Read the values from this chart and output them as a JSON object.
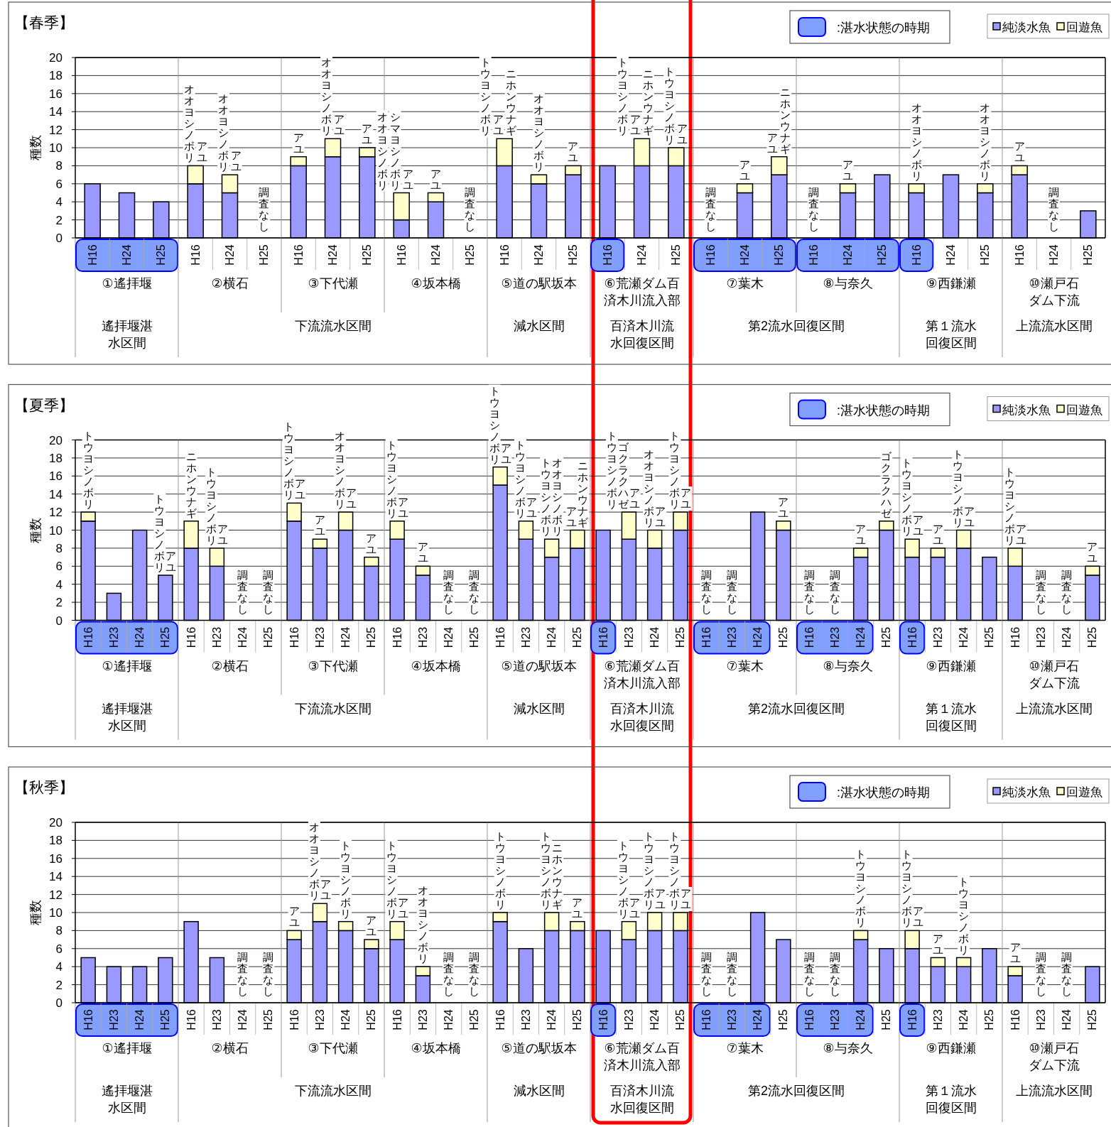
{
  "chart_data": [
    {
      "type": "bar",
      "title": "【春季】",
      "ylabel": "種数",
      "xlabel": "①遙拝堰",
      "stacked": true,
      "grid": "y",
      "ylim": [
        0,
        20
      ],
      "yticks": [
        0,
        2,
        4,
        6,
        8,
        10,
        12,
        14,
        16,
        18,
        20
      ],
      "categories": [
        "H16",
        "H24",
        "H25"
      ],
      "series": [
        {
          "color": "#9999ff",
          "values": [
            6,
            5,
            4
          ]
        }
      ],
      "annotations": [
        "遙拝堰湛水区間",
        ":湛水状態の時期"
      ]
    },
    {
      "type": "bar",
      "xlabel": "②横石",
      "stacked": true,
      "grid": "y",
      "tick_labels": "x",
      "ylim": [
        0,
        20
      ],
      "yticks": [
        0,
        2,
        4,
        6,
        8,
        10,
        12,
        14,
        16,
        18,
        20
      ],
      "categories": [
        "H16",
        "H24",
        "H25"
      ],
      "series": [
        {
          "color": "#9999ff",
          "values": [
            6,
            5,
            null
          ],
          "value_labels": [
            null,
            null,
            "調査なし"
          ]
        },
        {
          "color": "#ffffcc",
          "values": [
            2,
            2,
            null
          ]
        }
      ],
      "annotations": [
        {
          "text": "オオヨシノボリ",
          "x": "H16",
          "y": 8
        },
        {
          "text": "アユ",
          "x": "H16",
          "y": 8
        },
        {
          "text": "オオヨシノボリ",
          "x": "H24",
          "y": 7
        },
        {
          "text": "アユ",
          "x": "H24",
          "y": 7
        },
        "下流流水区間"
      ]
    },
    {
      "type": "bar",
      "xlabel": "③下代瀬",
      "stacked": true,
      "grid": "y",
      "tick_labels": "x",
      "ylim": [
        0,
        20
      ],
      "yticks": [
        0,
        2,
        4,
        6,
        8,
        10,
        12,
        14,
        16,
        18,
        20
      ],
      "categories": [
        "H16",
        "H24",
        "H25"
      ],
      "series": [
        {
          "color": "#9999ff",
          "values": [
            8,
            9,
            9
          ]
        },
        {
          "color": "#ffffcc",
          "values": [
            1,
            2,
            1
          ]
        }
      ],
      "annotations": [
        {
          "text": "アユ",
          "x": "H16",
          "y": 9
        },
        {
          "text": "オオヨシノボリ",
          "x": "H24",
          "y": 11
        },
        {
          "text": "アユ",
          "x": "H24",
          "y": 11
        },
        {
          "text": "アユ",
          "x": "H25",
          "y": 10
        }
      ]
    },
    {
      "type": "bar",
      "xlabel": "④坂本橋",
      "stacked": true,
      "grid": "y",
      "tick_labels": "x",
      "ylim": [
        0,
        20
      ],
      "yticks": [
        0,
        2,
        4,
        6,
        8,
        10,
        12,
        14,
        16,
        18,
        20
      ],
      "categories": [
        "H16",
        "H24",
        "H25"
      ],
      "series": [
        {
          "color": "#9999ff",
          "values": [
            2,
            4,
            null
          ],
          "value_labels": [
            null,
            null,
            "調査なし"
          ]
        },
        {
          "color": "#ffffcc",
          "values": [
            3,
            1,
            null
          ]
        }
      ],
      "annotations": [
        {
          "text": "オオヨシノボリ",
          "x": "H16",
          "y": 5
        },
        {
          "text": "シマヨシノボリ",
          "x": "H16",
          "y": 5
        },
        {
          "text": "アユ",
          "x": "H16",
          "y": 5
        },
        {
          "text": "アユ",
          "x": "H24",
          "y": 5
        }
      ]
    },
    {
      "type": "bar",
      "xlabel": "⑤道の駅坂本",
      "stacked": true,
      "grid": "y",
      "tick_labels": "x",
      "ylim": [
        0,
        20
      ],
      "yticks": [
        0,
        2,
        4,
        6,
        8,
        10,
        12,
        14,
        16,
        18,
        20
      ],
      "categories": [
        "H16",
        "H24",
        "H25"
      ],
      "series": [
        {
          "color": "#9999ff",
          "values": [
            8,
            6,
            7
          ]
        },
        {
          "color": "#ffffcc",
          "values": [
            3,
            1,
            1
          ]
        }
      ],
      "annotations": [
        {
          "text": "トウヨシノボリ",
          "x": "H16",
          "y": 11
        },
        {
          "text": "アユ",
          "x": "H16",
          "y": 11
        },
        {
          "text": "ニホンウナギ",
          "x": "H16",
          "y": 11
        },
        {
          "text": "オオヨシノボリ",
          "x": "H24",
          "y": 7
        },
        {
          "text": "アユ",
          "x": "H25",
          "y": 8
        },
        "減水区間"
      ]
    },
    {
      "type": "bar",
      "xlabel": "⑥荒瀬ダム百済木川流入部",
      "stacked": true,
      "grid": "y",
      "tick_labels": "x",
      "ylim": [
        0,
        20
      ],
      "yticks": [
        0,
        2,
        4,
        6,
        8,
        10,
        12,
        14,
        16,
        18,
        20
      ],
      "categories": [
        "H16",
        "H24",
        "H25"
      ],
      "series": [
        {
          "color": "#9999ff",
          "values": [
            8,
            8,
            8
          ]
        },
        {
          "color": "#ffffcc",
          "values": [
            null,
            3,
            2
          ]
        }
      ],
      "annotations": [
        {
          "text": "トウヨシノボリ",
          "x": "H24",
          "y": 11
        },
        {
          "text": "アユ",
          "x": "H24",
          "y": 11
        },
        {
          "text": "ニホンウナギ",
          "x": "H24",
          "y": 11
        },
        {
          "text": "トウヨシノボリ",
          "x": "H25",
          "y": 10
        },
        {
          "text": "アユ",
          "x": "H25",
          "y": 10
        },
        "百済木川流水回復区間"
      ]
    },
    {
      "type": "bar",
      "xlabel": "⑦葉木",
      "stacked": true,
      "grid": "y",
      "tick_labels": "x",
      "ylim": [
        0,
        20
      ],
      "yticks": [
        0,
        2,
        4,
        6,
        8,
        10,
        12,
        14,
        16,
        18,
        20
      ],
      "categories": [
        "H16",
        "H24",
        "H25"
      ],
      "series": [
        {
          "color": "#9999ff",
          "values": [
            null,
            5,
            7
          ],
          "value_labels": [
            "調査なし",
            null,
            null
          ]
        },
        {
          "color": "#ffffcc",
          "values": [
            null,
            1,
            2
          ]
        }
      ],
      "annotations": [
        {
          "text": "アユ",
          "x": "H24",
          "y": 6
        },
        {
          "text": "アユ",
          "x": "H25",
          "y": 9
        },
        {
          "text": "ニホンウナギ",
          "x": "H25",
          "y": 9
        },
        "第2流水回復区間"
      ]
    },
    {
      "type": "bar",
      "xlabel": "⑧与奈久",
      "stacked": true,
      "grid": "y",
      "tick_labels": "x",
      "ylim": [
        0,
        20
      ],
      "yticks": [
        0,
        2,
        4,
        6,
        8,
        10,
        12,
        14,
        16,
        18,
        20
      ],
      "categories": [
        "H16",
        "H24",
        "H25"
      ],
      "series": [
        {
          "color": "#9999ff",
          "values": [
            null,
            5,
            7
          ],
          "value_labels": [
            "調査なし",
            null,
            null
          ]
        },
        {
          "color": "#ffffcc",
          "values": [
            null,
            1,
            null
          ]
        }
      ],
      "annotations": [
        {
          "text": "アユ",
          "x": "H24",
          "y": 6
        }
      ]
    },
    {
      "type": "bar",
      "xlabel": "⑨西鎌瀬",
      "stacked": true,
      "grid": "y",
      "tick_labels": "x",
      "ylim": [
        0,
        20
      ],
      "yticks": [
        0,
        2,
        4,
        6,
        8,
        10,
        12,
        14,
        16,
        18,
        20
      ],
      "categories": [
        "H16",
        "H24",
        "H25"
      ],
      "series": [
        {
          "color": "#9999ff",
          "values": [
            5,
            7,
            5
          ]
        },
        {
          "color": "#ffffcc",
          "values": [
            1,
            null,
            1
          ]
        }
      ],
      "annotations": [
        {
          "text": "オオヨシノボリ",
          "x": "H16",
          "y": 6
        },
        {
          "text": "オオヨシノボリ",
          "x": "H25",
          "y": 6
        },
        "第１流水回復区間"
      ]
    },
    {
      "type": "bar",
      "xlabel": "⑩瀬戸石ダム下流",
      "stacked": true,
      "grid": "y",
      "tick_labels": "x",
      "legend": "top",
      "ylim": [
        0,
        20
      ],
      "yticks": [
        0,
        2,
        4,
        6,
        8,
        10,
        12,
        14,
        16,
        18,
        20
      ],
      "categories": [
        "H16",
        "H24",
        "H25"
      ],
      "series": [
        {
          "name": "純淡水魚",
          "color": "#9999ff",
          "values": [
            7,
            null,
            3
          ],
          "value_labels": [
            null,
            "調査なし",
            null
          ]
        },
        {
          "name": "回遊魚",
          "color": "#ffffcc",
          "values": [
            1,
            null,
            null
          ]
        }
      ],
      "annotations": [
        {
          "text": "アユ",
          "x": "H16",
          "y": 8
        },
        "上流流水区間"
      ]
    },
    {
      "type": "bar",
      "title": "【夏季】",
      "ylabel": "種数",
      "xlabel": "①遙拝堰",
      "stacked": true,
      "grid": "y",
      "ylim": [
        0,
        20
      ],
      "yticks": [
        0,
        2,
        4,
        6,
        8,
        10,
        12,
        14,
        16,
        18,
        20
      ],
      "categories": [
        "H16",
        "H23",
        "H24",
        "H25"
      ],
      "series": [
        {
          "color": "#9999ff",
          "values": [
            11,
            3,
            10,
            5
          ]
        },
        {
          "color": "#ffffcc",
          "values": [
            1,
            null,
            null,
            null
          ]
        }
      ],
      "annotations": [
        {
          "text": "トウヨシノボリ",
          "x": "H16",
          "y": 12
        },
        {
          "text": "トウヨシノボリ",
          "x": "H25",
          "y": 5
        },
        {
          "text": "アユ",
          "x": "H25",
          "y": 5
        },
        "遙拝堰湛水区間",
        ":湛水状態の時期"
      ]
    },
    {
      "type": "bar",
      "xlabel": "②横石",
      "stacked": true,
      "grid": "y",
      "tick_labels": "x",
      "ylim": [
        0,
        20
      ],
      "yticks": [
        0,
        2,
        4,
        6,
        8,
        10,
        12,
        14,
        16,
        18,
        20
      ],
      "categories": [
        "H16",
        "H23",
        "H24",
        "H25"
      ],
      "series": [
        {
          "color": "#9999ff",
          "values": [
            8,
            6,
            null,
            null
          ],
          "value_labels": [
            null,
            null,
            "調査なし",
            "調査なし"
          ]
        },
        {
          "color": "#ffffcc",
          "values": [
            3,
            2,
            null,
            null
          ]
        }
      ],
      "annotations": [
        {
          "text": "ニホンウナギ",
          "x": "H16",
          "y": 11
        },
        {
          "text": "トウヨシノボリ",
          "x": "H23",
          "y": 8
        },
        {
          "text": "アユ",
          "x": "H23",
          "y": 8
        },
        "下流流水区間"
      ]
    },
    {
      "type": "bar",
      "xlabel": "③下代瀬",
      "stacked": true,
      "grid": "y",
      "tick_labels": "x",
      "ylim": [
        0,
        20
      ],
      "yticks": [
        0,
        2,
        4,
        6,
        8,
        10,
        12,
        14,
        16,
        18,
        20
      ],
      "categories": [
        "H16",
        "H23",
        "H24",
        "H25"
      ],
      "series": [
        {
          "color": "#9999ff",
          "values": [
            11,
            8,
            10,
            6
          ]
        },
        {
          "color": "#ffffcc",
          "values": [
            2,
            1,
            2,
            1
          ]
        }
      ],
      "annotations": [
        {
          "text": "トウヨシノボリ",
          "x": "H16",
          "y": 13
        },
        {
          "text": "アユ",
          "x": "H16",
          "y": 13
        },
        {
          "text": "アユ",
          "x": "H23",
          "y": 9
        },
        {
          "text": "オオヨシノボリ",
          "x": "H24",
          "y": 12
        },
        {
          "text": "アユ",
          "x": "H24",
          "y": 12
        },
        {
          "text": "アユ",
          "x": "H25",
          "y": 7
        }
      ]
    },
    {
      "type": "bar",
      "xlabel": "④坂本橋",
      "stacked": true,
      "grid": "y",
      "tick_labels": "x",
      "ylim": [
        0,
        20
      ],
      "yticks": [
        0,
        2,
        4,
        6,
        8,
        10,
        12,
        14,
        16,
        18,
        20
      ],
      "categories": [
        "H16",
        "H23",
        "H24",
        "H25"
      ],
      "series": [
        {
          "color": "#9999ff",
          "values": [
            9,
            5,
            null,
            null
          ],
          "value_labels": [
            null,
            null,
            "調査なし",
            "調査なし"
          ]
        },
        {
          "color": "#ffffcc",
          "values": [
            2,
            1,
            null,
            null
          ]
        }
      ],
      "annotations": [
        {
          "text": "トウヨシノボリ",
          "x": "H16",
          "y": 11
        },
        {
          "text": "アユ",
          "x": "H16",
          "y": 11
        },
        {
          "text": "アユ",
          "x": "H23",
          "y": 6
        }
      ]
    },
    {
      "type": "bar",
      "xlabel": "⑤道の駅坂本",
      "stacked": true,
      "grid": "y",
      "tick_labels": "x",
      "ylim": [
        0,
        20
      ],
      "yticks": [
        0,
        2,
        4,
        6,
        8,
        10,
        12,
        14,
        16,
        18,
        20
      ],
      "categories": [
        "H16",
        "H23",
        "H24",
        "H25"
      ],
      "series": [
        {
          "color": "#9999ff",
          "values": [
            15,
            9,
            7,
            8
          ]
        },
        {
          "color": "#ffffcc",
          "values": [
            2,
            2,
            2,
            2
          ]
        }
      ],
      "annotations": [
        {
          "text": "トウヨシノボリ",
          "x": "H16",
          "y": 17
        },
        {
          "text": "アユ",
          "x": "H16",
          "y": 17
        },
        {
          "text": "トウヨシノボリ",
          "x": "H23",
          "y": 11
        },
        {
          "text": "アユ",
          "x": "H23",
          "y": 11
        },
        {
          "text": "トウヨシノボリ",
          "x": "H24",
          "y": 9
        },
        {
          "text": "オオヨシノボリ",
          "x": "H24",
          "y": 9
        },
        {
          "text": "アユ",
          "x": "H25",
          "y": 10
        },
        {
          "text": "ニホンウナギ",
          "x": "H25",
          "y": 10
        },
        "減水区間"
      ]
    },
    {
      "type": "bar",
      "xlabel": "⑥荒瀬ダム百済木川流入部",
      "stacked": true,
      "grid": "y",
      "tick_labels": "x",
      "ylim": [
        0,
        20
      ],
      "yticks": [
        0,
        2,
        4,
        6,
        8,
        10,
        12,
        14,
        16,
        18,
        20
      ],
      "categories": [
        "H16",
        "H23",
        "H24",
        "H25"
      ],
      "series": [
        {
          "color": "#9999ff",
          "values": [
            10,
            9,
            8,
            10
          ]
        },
        {
          "color": "#ffffcc",
          "values": [
            null,
            3,
            2,
            2
          ]
        }
      ],
      "annotations": [
        {
          "text": "トウヨシノボリ",
          "x": "H23",
          "y": 12
        },
        {
          "text": "ゴクラクハゼ",
          "x": "H23",
          "y": 12
        },
        {
          "text": "アユ",
          "x": "H23",
          "y": 12
        },
        {
          "text": "オオヨシノボリ",
          "x": "H24",
          "y": 10
        },
        {
          "text": "アユ",
          "x": "H24",
          "y": 10
        },
        {
          "text": "トウヨシノボリ",
          "x": "H25",
          "y": 12
        },
        {
          "text": "アユ",
          "x": "H25",
          "y": 12
        },
        "百済木川流水回復区間"
      ]
    },
    {
      "type": "bar",
      "xlabel": "⑦葉木",
      "stacked": true,
      "grid": "y",
      "tick_labels": "x",
      "ylim": [
        0,
        20
      ],
      "yticks": [
        0,
        2,
        4,
        6,
        8,
        10,
        12,
        14,
        16,
        18,
        20
      ],
      "categories": [
        "H16",
        "H23",
        "H24",
        "H25"
      ],
      "series": [
        {
          "color": "#9999ff",
          "values": [
            null,
            null,
            12,
            10
          ],
          "value_labels": [
            "調査なし",
            "調査なし",
            null,
            null
          ]
        },
        {
          "color": "#ffffcc",
          "values": [
            null,
            null,
            null,
            1
          ]
        }
      ],
      "annotations": [
        {
          "text": "アユ",
          "x": "H25",
          "y": 11
        },
        "第2流水回復区間"
      ]
    },
    {
      "type": "bar",
      "xlabel": "⑧与奈久",
      "stacked": true,
      "grid": "y",
      "tick_labels": "x",
      "ylim": [
        0,
        20
      ],
      "yticks": [
        0,
        2,
        4,
        6,
        8,
        10,
        12,
        14,
        16,
        18,
        20
      ],
      "categories": [
        "H16",
        "H23",
        "H24",
        "H25"
      ],
      "series": [
        {
          "color": "#9999ff",
          "values": [
            null,
            null,
            7,
            10
          ],
          "value_labels": [
            "調査なし",
            "調査なし",
            null,
            null
          ]
        },
        {
          "color": "#ffffcc",
          "values": [
            null,
            null,
            1,
            1
          ]
        }
      ],
      "annotations": [
        {
          "text": "アユ",
          "x": "H24",
          "y": 8
        },
        {
          "text": "ゴクラクハゼ",
          "x": "H25",
          "y": 11
        }
      ]
    },
    {
      "type": "bar",
      "xlabel": "⑨西鎌瀬",
      "stacked": true,
      "grid": "y",
      "tick_labels": "x",
      "ylim": [
        0,
        20
      ],
      "yticks": [
        0,
        2,
        4,
        6,
        8,
        10,
        12,
        14,
        16,
        18,
        20
      ],
      "categories": [
        "H16",
        "H23",
        "H24",
        "H25"
      ],
      "series": [
        {
          "color": "#9999ff",
          "values": [
            7,
            7,
            8,
            7
          ]
        },
        {
          "color": "#ffffcc",
          "values": [
            2,
            1,
            2,
            null
          ]
        }
      ],
      "annotations": [
        {
          "text": "トウヨシノボリ",
          "x": "H16",
          "y": 9
        },
        {
          "text": "アユ",
          "x": "H16",
          "y": 9
        },
        {
          "text": "アユ",
          "x": "H23",
          "y": 8
        },
        {
          "text": "トウヨシノボリ",
          "x": "H24",
          "y": 10
        },
        {
          "text": "アユ",
          "x": "H24",
          "y": 10
        },
        "第１流水回復区間"
      ]
    },
    {
      "type": "bar",
      "xlabel": "⑩瀬戸石ダム下流",
      "stacked": true,
      "grid": "y",
      "tick_labels": "x",
      "legend": "top",
      "ylim": [
        0,
        20
      ],
      "yticks": [
        0,
        2,
        4,
        6,
        8,
        10,
        12,
        14,
        16,
        18,
        20
      ],
      "categories": [
        "H16",
        "H23",
        "H24",
        "H25"
      ],
      "series": [
        {
          "name": "純淡水魚",
          "color": "#9999ff",
          "values": [
            6,
            null,
            null,
            5
          ],
          "value_labels": [
            null,
            "調査なし",
            "調査なし",
            null
          ]
        },
        {
          "name": "回遊魚",
          "color": "#ffffcc",
          "values": [
            2,
            null,
            null,
            1
          ]
        }
      ],
      "annotations": [
        {
          "text": "トウヨシノボリ",
          "x": "H16",
          "y": 8
        },
        {
          "text": "アユ",
          "x": "H16",
          "y": 8
        },
        {
          "text": "アユ",
          "x": "H25",
          "y": 6
        },
        "上流流水区間"
      ]
    },
    {
      "type": "bar",
      "title": "【秋季】",
      "ylabel": "種数",
      "xlabel": "①遙拝堰",
      "stacked": true,
      "grid": "y",
      "ylim": [
        0,
        20
      ],
      "yticks": [
        0,
        2,
        4,
        6,
        8,
        10,
        12,
        14,
        16,
        18,
        20
      ],
      "categories": [
        "H16",
        "H23",
        "H24",
        "H25"
      ],
      "series": [
        {
          "color": "#9999ff",
          "values": [
            5,
            4,
            4,
            5
          ]
        }
      ],
      "annotations": [
        "遙拝堰湛水区間",
        ":湛水状態の時期"
      ]
    },
    {
      "type": "bar",
      "xlabel": "②横石",
      "stacked": true,
      "grid": "y",
      "tick_labels": "x",
      "ylim": [
        0,
        20
      ],
      "yticks": [
        0,
        2,
        4,
        6,
        8,
        10,
        12,
        14,
        16,
        18,
        20
      ],
      "categories": [
        "H16",
        "H23",
        "H24",
        "H25"
      ],
      "series": [
        {
          "color": "#9999ff",
          "values": [
            9,
            5,
            null,
            null
          ],
          "value_labels": [
            null,
            null,
            "調査なし",
            "調査なし"
          ]
        }
      ],
      "annotations": [
        "下流流水区間"
      ]
    },
    {
      "type": "bar",
      "xlabel": "③下代瀬",
      "stacked": true,
      "grid": "y",
      "tick_labels": "x",
      "ylim": [
        0,
        20
      ],
      "yticks": [
        0,
        2,
        4,
        6,
        8,
        10,
        12,
        14,
        16,
        18,
        20
      ],
      "categories": [
        "H16",
        "H23",
        "H24",
        "H25"
      ],
      "series": [
        {
          "color": "#9999ff",
          "values": [
            7,
            9,
            8,
            6
          ]
        },
        {
          "color": "#ffffcc",
          "values": [
            1,
            2,
            1,
            1
          ]
        }
      ],
      "annotations": [
        {
          "text": "アユ",
          "x": "H16",
          "y": 8
        },
        {
          "text": "オオヨシノボリ",
          "x": "H23",
          "y": 11
        },
        {
          "text": "アユ",
          "x": "H23",
          "y": 11
        },
        {
          "text": "トウヨシノボリ",
          "x": "H24",
          "y": 9
        },
        {
          "text": "アユ",
          "x": "H25",
          "y": 7
        }
      ]
    },
    {
      "type": "bar",
      "xlabel": "④坂本橋",
      "stacked": true,
      "grid": "y",
      "tick_labels": "x",
      "ylim": [
        0,
        20
      ],
      "yticks": [
        0,
        2,
        4,
        6,
        8,
        10,
        12,
        14,
        16,
        18,
        20
      ],
      "categories": [
        "H16",
        "H23",
        "H24",
        "H25"
      ],
      "series": [
        {
          "color": "#9999ff",
          "values": [
            7,
            3,
            null,
            null
          ],
          "value_labels": [
            null,
            null,
            "調査なし",
            "調査なし"
          ]
        },
        {
          "color": "#ffffcc",
          "values": [
            2,
            1,
            null,
            null
          ]
        }
      ],
      "annotations": [
        {
          "text": "トウヨシノボリ",
          "x": "H16",
          "y": 9
        },
        {
          "text": "アユ",
          "x": "H16",
          "y": 9
        },
        {
          "text": "オオヨシノボリ",
          "x": "H23",
          "y": 4
        }
      ]
    },
    {
      "type": "bar",
      "xlabel": "⑤道の駅坂本",
      "stacked": true,
      "grid": "y",
      "tick_labels": "x",
      "ylim": [
        0,
        20
      ],
      "yticks": [
        0,
        2,
        4,
        6,
        8,
        10,
        12,
        14,
        16,
        18,
        20
      ],
      "categories": [
        "H16",
        "H23",
        "H24",
        "H25"
      ],
      "series": [
        {
          "color": "#9999ff",
          "values": [
            9,
            6,
            8,
            8
          ]
        },
        {
          "color": "#ffffcc",
          "values": [
            1,
            null,
            2,
            1
          ]
        }
      ],
      "annotations": [
        {
          "text": "トウヨシノボリ",
          "x": "H16",
          "y": 10
        },
        {
          "text": "トウヨシノボリ",
          "x": "H24",
          "y": 10
        },
        {
          "text": "ニホンウナギ",
          "x": "H24",
          "y": 10
        },
        {
          "text": "アユ",
          "x": "H25",
          "y": 9
        },
        "減水区間"
      ]
    },
    {
      "type": "bar",
      "xlabel": "⑥荒瀬ダム百済木川流入部",
      "stacked": true,
      "grid": "y",
      "tick_labels": "x",
      "ylim": [
        0,
        20
      ],
      "yticks": [
        0,
        2,
        4,
        6,
        8,
        10,
        12,
        14,
        16,
        18,
        20
      ],
      "categories": [
        "H16",
        "H23",
        "H24",
        "H25"
      ],
      "series": [
        {
          "color": "#9999ff",
          "values": [
            8,
            7,
            8,
            8
          ]
        },
        {
          "color": "#ffffcc",
          "values": [
            null,
            2,
            2,
            2
          ]
        }
      ],
      "annotations": [
        {
          "text": "トウヨシノボリ",
          "x": "H23",
          "y": 9
        },
        {
          "text": "アユ",
          "x": "H23",
          "y": 9
        },
        {
          "text": "トウヨシノボリ",
          "x": "H24",
          "y": 10
        },
        {
          "text": "アユ",
          "x": "H24",
          "y": 10
        },
        {
          "text": "トウヨシノボリ",
          "x": "H25",
          "y": 10
        },
        {
          "text": "アユ",
          "x": "H25",
          "y": 10
        },
        "百済木川流水回復区間"
      ]
    },
    {
      "type": "bar",
      "xlabel": "⑦葉木",
      "stacked": true,
      "grid": "y",
      "tick_labels": "x",
      "ylim": [
        0,
        20
      ],
      "yticks": [
        0,
        2,
        4,
        6,
        8,
        10,
        12,
        14,
        16,
        18,
        20
      ],
      "categories": [
        "H16",
        "H23",
        "H24",
        "H25"
      ],
      "series": [
        {
          "color": "#9999ff",
          "values": [
            null,
            null,
            10,
            7
          ],
          "value_labels": [
            "調査なし",
            "調査なし",
            null,
            null
          ]
        }
      ],
      "annotations": [
        "第2流水回復区間"
      ]
    },
    {
      "type": "bar",
      "xlabel": "⑧与奈久",
      "stacked": true,
      "grid": "y",
      "tick_labels": "x",
      "ylim": [
        0,
        20
      ],
      "yticks": [
        0,
        2,
        4,
        6,
        8,
        10,
        12,
        14,
        16,
        18,
        20
      ],
      "categories": [
        "H16",
        "H23",
        "H24",
        "H25"
      ],
      "series": [
        {
          "color": "#9999ff",
          "values": [
            null,
            null,
            7,
            6
          ],
          "value_labels": [
            "調査なし",
            "調査なし",
            null,
            null
          ]
        },
        {
          "color": "#ffffcc",
          "values": [
            null,
            null,
            1,
            null
          ]
        }
      ],
      "annotations": [
        {
          "text": "トウヨシノボリ",
          "x": "H24",
          "y": 8
        }
      ]
    },
    {
      "type": "bar",
      "xlabel": "⑨西鎌瀬",
      "stacked": true,
      "grid": "y",
      "tick_labels": "x",
      "ylim": [
        0,
        20
      ],
      "yticks": [
        0,
        2,
        4,
        6,
        8,
        10,
        12,
        14,
        16,
        18,
        20
      ],
      "categories": [
        "H16",
        "H23",
        "H24",
        "H25"
      ],
      "series": [
        {
          "color": "#9999ff",
          "values": [
            6,
            4,
            4,
            6
          ]
        },
        {
          "color": "#ffffcc",
          "values": [
            2,
            1,
            1,
            null
          ]
        }
      ],
      "annotations": [
        {
          "text": "トウヨシノボリ",
          "x": "H16",
          "y": 8
        },
        {
          "text": "アユ",
          "x": "H16",
          "y": 8
        },
        {
          "text": "アユ",
          "x": "H23",
          "y": 5
        },
        {
          "text": "トウヨシノボリ",
          "x": "H24",
          "y": 5
        },
        "第１流水回復区間"
      ]
    },
    {
      "type": "bar",
      "xlabel": "⑩瀬戸石ダム下流",
      "stacked": true,
      "grid": "y",
      "tick_labels": "x",
      "legend": "top",
      "ylim": [
        0,
        20
      ],
      "yticks": [
        0,
        2,
        4,
        6,
        8,
        10,
        12,
        14,
        16,
        18,
        20
      ],
      "categories": [
        "H16",
        "H23",
        "H24",
        "H25"
      ],
      "series": [
        {
          "name": "純淡水魚",
          "color": "#9999ff",
          "values": [
            3,
            null,
            null,
            4
          ],
          "value_labels": [
            null,
            "調査なし",
            "調査なし",
            null
          ]
        },
        {
          "name": "回遊魚",
          "color": "#ffffcc",
          "values": [
            1,
            null,
            null,
            null
          ]
        }
      ],
      "annotations": [
        {
          "text": "アユ",
          "x": "H16",
          "y": 4
        },
        "上流流水区間"
      ]
    }
  ]
}
